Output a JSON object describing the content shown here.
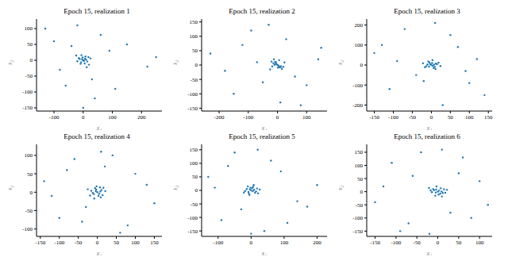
{
  "chart_data": [
    {
      "type": "scatter",
      "title": "Epoch 15, realization 1",
      "x_label": "x₁",
      "y_label": "x₂",
      "color": "#1f77b4",
      "xlim": [
        -160,
        270
      ],
      "ylim": [
        -160,
        130
      ],
      "xticks": [
        -100,
        0,
        100,
        200
      ],
      "yticks": [
        -150,
        -100,
        -50,
        0,
        50,
        100
      ],
      "x": [
        0,
        3,
        -4,
        6,
        -7,
        10,
        -2,
        5,
        -12,
        8,
        -9,
        14,
        -15,
        18,
        -6,
        20,
        -20,
        25,
        -24,
        12,
        -130,
        -100,
        -60,
        40,
        90,
        150,
        220,
        60,
        -40,
        30,
        110,
        -80,
        250,
        0,
        -20
      ],
      "values": [
        0,
        -2,
        3,
        5,
        -6,
        2,
        9,
        -10,
        4,
        12,
        -11,
        -4,
        7,
        10,
        16,
        -14,
        -3,
        6,
        15,
        -22,
        100,
        60,
        -80,
        -120,
        30,
        50,
        -20,
        80,
        45,
        -60,
        -90,
        -30,
        10,
        -150,
        110
      ]
    },
    {
      "type": "scatter",
      "title": "Epoch 15, realization 2",
      "x_label": "x₁",
      "y_label": "x₂",
      "color": "#1f77b4",
      "xlim": [
        -260,
        170
      ],
      "ylim": [
        -160,
        160
      ],
      "xticks": [
        -200,
        -100,
        0,
        100
      ],
      "yticks": [
        -150,
        -100,
        -50,
        0,
        50,
        100,
        150
      ],
      "x": [
        0,
        -3,
        4,
        -6,
        7,
        -10,
        2,
        -5,
        12,
        -8,
        9,
        -14,
        15,
        -18,
        6,
        -20,
        20,
        -25,
        24,
        -12,
        -230,
        -150,
        -90,
        -50,
        30,
        80,
        140,
        -120,
        60,
        -30,
        100,
        -70,
        10,
        -180,
        150
      ],
      "values": [
        0,
        3,
        -2,
        5,
        -7,
        1,
        -9,
        10,
        -4,
        11,
        -8,
        6,
        -13,
        -5,
        17,
        12,
        -6,
        -15,
        9,
        20,
        40,
        -100,
        120,
        -60,
        90,
        -140,
        20,
        70,
        -40,
        140,
        -70,
        10,
        -130,
        -20,
        60
      ]
    },
    {
      "type": "scatter",
      "title": "Epoch 15, realization 3",
      "x_label": "x₁",
      "y_label": "x₂",
      "color": "#1f77b4",
      "xlim": [
        -170,
        160
      ],
      "ylim": [
        -230,
        230
      ],
      "xticks": [
        -150,
        -100,
        -50,
        0,
        50,
        100,
        150
      ],
      "yticks": [
        -200,
        -100,
        0,
        100,
        200
      ],
      "x": [
        0,
        4,
        -3,
        7,
        -6,
        2,
        -10,
        9,
        -5,
        12,
        -13,
        6,
        15,
        -8,
        -17,
        11,
        19,
        -22,
        3,
        24,
        -150,
        -110,
        -70,
        -40,
        30,
        70,
        120,
        140,
        -90,
        50,
        -20,
        90,
        -130,
        10,
        100
      ],
      "values": [
        0,
        -4,
        5,
        2,
        -8,
        10,
        3,
        -9,
        13,
        7,
        -6,
        -15,
        4,
        18,
        -11,
        -20,
        12,
        9,
        25,
        -5,
        60,
        -120,
        180,
        -50,
        -200,
        90,
        30,
        -150,
        20,
        150,
        -80,
        -30,
        100,
        210,
        -90
      ]
    },
    {
      "type": "scatter",
      "title": "Epoch 15, realization 4",
      "x_label": "x₁",
      "y_label": "x₂",
      "color": "#1f77b4",
      "xlim": [
        -160,
        170
      ],
      "ylim": [
        -120,
        130
      ],
      "xticks": [
        -150,
        -100,
        -50,
        0,
        50,
        100,
        150
      ],
      "yticks": [
        -100,
        -50,
        0,
        50,
        100
      ],
      "x": [
        0,
        -4,
        5,
        -3,
        8,
        -9,
        3,
        11,
        -6,
        -12,
        14,
        7,
        -16,
        9,
        -2,
        -19,
        21,
        -8,
        16,
        -25,
        -140,
        -100,
        -60,
        -30,
        40,
        80,
        130,
        150,
        -80,
        60,
        -120,
        20,
        100,
        -40,
        10
      ],
      "values": [
        0,
        3,
        -4,
        7,
        2,
        -5,
        -10,
        6,
        11,
        -2,
        -8,
        13,
        4,
        -14,
        16,
        -9,
        3,
        -17,
        12,
        8,
        30,
        -70,
        90,
        -40,
        100,
        -90,
        20,
        -30,
        60,
        -110,
        -10,
        70,
        50,
        -80,
        110
      ]
    },
    {
      "type": "scatter",
      "title": "Epoch 15, realization 5",
      "x_label": "x₁",
      "y_label": "x₂",
      "color": "#1f77b4",
      "xlim": [
        -150,
        230
      ],
      "ylim": [
        -170,
        170
      ],
      "xticks": [
        -100,
        0,
        100,
        200
      ],
      "yticks": [
        -150,
        -100,
        -50,
        0,
        50,
        100,
        150
      ],
      "x": [
        0,
        5,
        -4,
        3,
        -8,
        9,
        -2,
        12,
        -7,
        6,
        -13,
        15,
        -10,
        18,
        -5,
        21,
        -18,
        8,
        26,
        -22,
        -130,
        -90,
        -50,
        40,
        90,
        140,
        200,
        60,
        -30,
        110,
        -110,
        20,
        170,
        -70,
        0
      ],
      "values": [
        0,
        -3,
        4,
        8,
        -6,
        2,
        10,
        -9,
        -12,
        13,
        5,
        -4,
        15,
        7,
        -17,
        -11,
        -2,
        20,
        3,
        -8,
        50,
        -110,
        140,
        -150,
        70,
        -40,
        20,
        110,
        -70,
        -120,
        10,
        150,
        -60,
        90,
        -160
      ]
    },
    {
      "type": "scatter",
      "title": "Epoch 15, realization 6",
      "x_label": "x₁",
      "y_label": "x₂",
      "color": "#1f77b4",
      "xlim": [
        -170,
        130
      ],
      "ylim": [
        -170,
        180
      ],
      "xticks": [
        -150,
        -100,
        -50,
        0,
        50,
        100
      ],
      "yticks": [
        -150,
        -100,
        -50,
        0,
        50,
        100,
        150
      ],
      "x": [
        0,
        3,
        -5,
        6,
        -4,
        9,
        -9,
        2,
        12,
        -11,
        7,
        -14,
        15,
        -6,
        18,
        -17,
        10,
        -21,
        22,
        -3,
        -150,
        -110,
        -70,
        -40,
        30,
        60,
        100,
        120,
        -90,
        50,
        -130,
        -20,
        80,
        -60,
        10
      ],
      "values": [
        0,
        4,
        -3,
        -7,
        8,
        1,
        6,
        -11,
        -5,
        10,
        13,
        -2,
        9,
        -15,
        -4,
        5,
        -18,
        14,
        7,
        20,
        -40,
        110,
        -120,
        150,
        -80,
        130,
        40,
        -50,
        -150,
        70,
        20,
        -160,
        -100,
        60,
        160
      ]
    }
  ]
}
